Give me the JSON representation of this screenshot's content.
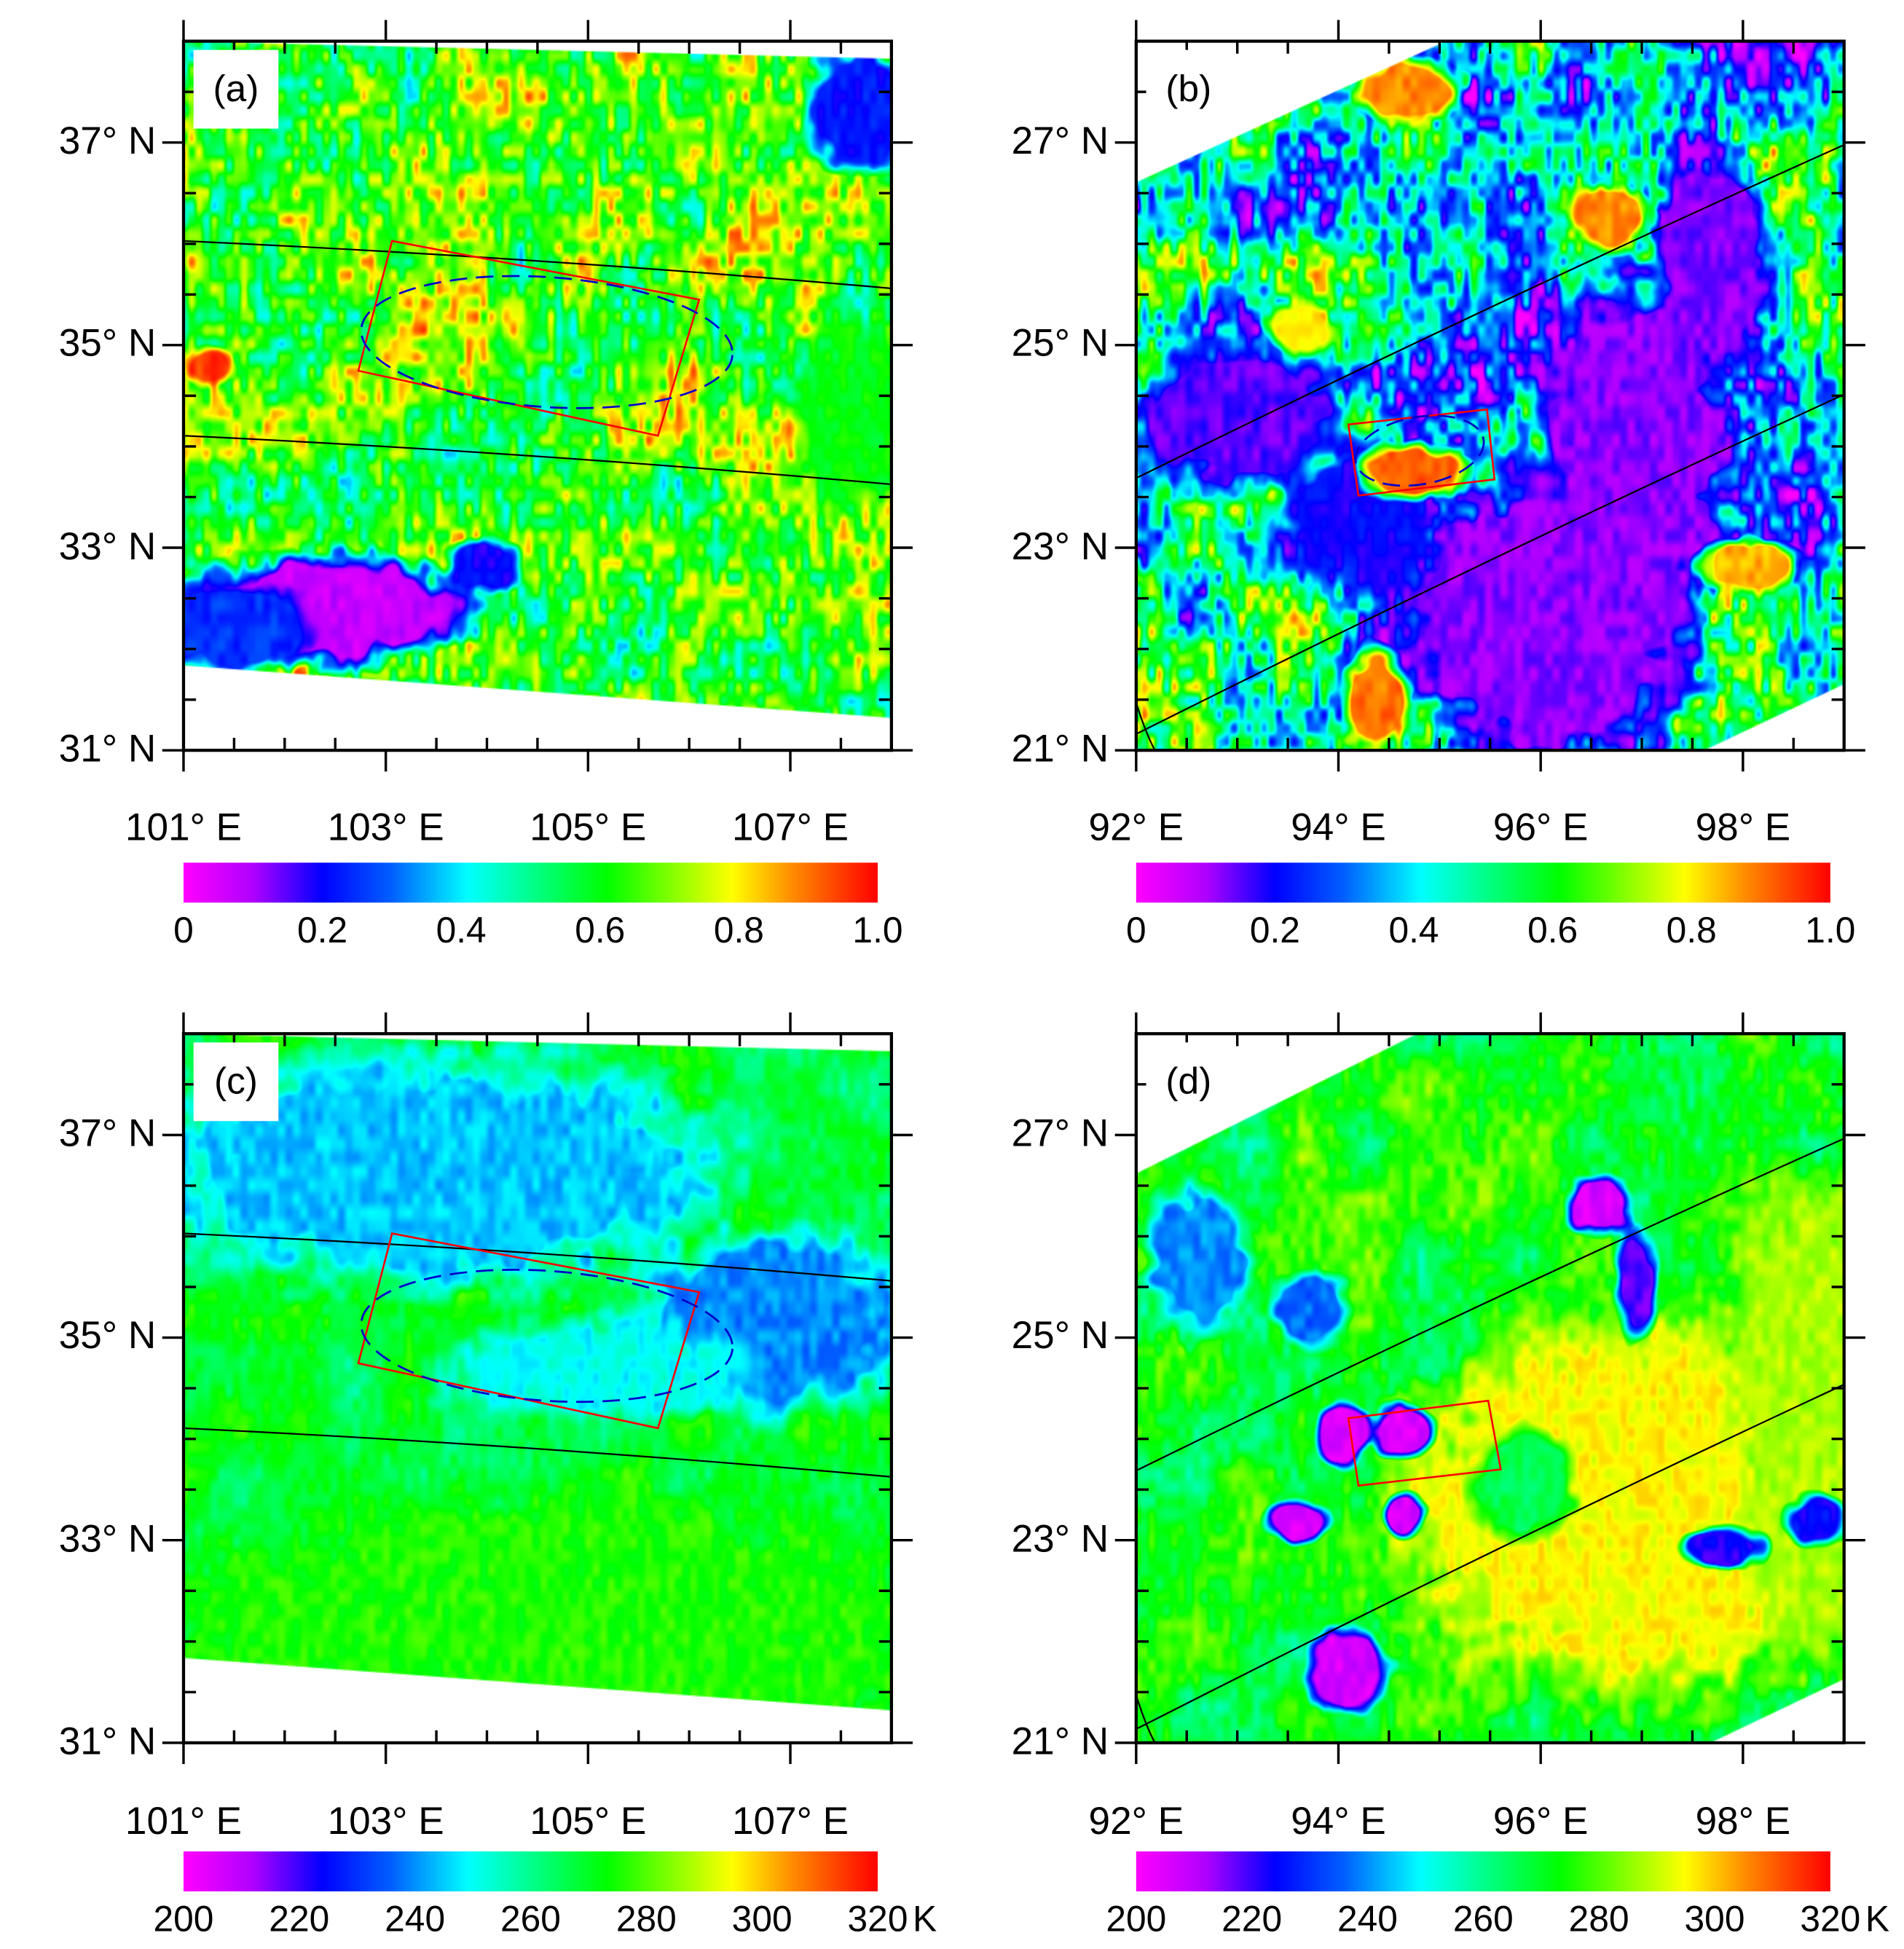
{
  "figure": {
    "panels": [
      {
        "id": "a",
        "label": "(a)",
        "lat_ticks": [
          {
            "value": 37,
            "label": "37° N"
          },
          {
            "value": 35,
            "label": "35° N"
          },
          {
            "value": 33,
            "label": "33° N"
          },
          {
            "value": 31,
            "label": "31° N"
          }
        ],
        "lon_ticks": [
          {
            "value": 101,
            "label": "101° E"
          },
          {
            "value": 103,
            "label": "103° E"
          },
          {
            "value": 105,
            "label": "105° E"
          },
          {
            "value": 107,
            "label": "107° E"
          }
        ],
        "lat_range": [
          31,
          38
        ],
        "lon_range": [
          101,
          108
        ],
        "colorbar": {
          "range": [
            0,
            1.0
          ],
          "ticks": [
            "0",
            "0.2",
            "0.4",
            "0.6",
            "0.8",
            "1.0"
          ],
          "unit": ""
        }
      },
      {
        "id": "b",
        "label": "(b)",
        "lat_ticks": [
          {
            "value": 27,
            "label": "27° N"
          },
          {
            "value": 25,
            "label": "25° N"
          },
          {
            "value": 23,
            "label": "23° N"
          },
          {
            "value": 21,
            "label": "21° N"
          }
        ],
        "lon_ticks": [
          {
            "value": 92,
            "label": "92° E"
          },
          {
            "value": 94,
            "label": "94° E"
          },
          {
            "value": 96,
            "label": "96° E"
          },
          {
            "value": 98,
            "label": "98° E"
          }
        ],
        "lat_range": [
          21,
          28
        ],
        "lon_range": [
          92,
          99
        ],
        "colorbar": {
          "range": [
            0,
            1.0
          ],
          "ticks": [
            "0",
            "0.2",
            "0.4",
            "0.6",
            "0.8",
            "1.0"
          ],
          "unit": ""
        }
      },
      {
        "id": "c",
        "label": "(c)",
        "lat_ticks": [
          {
            "value": 37,
            "label": "37° N"
          },
          {
            "value": 35,
            "label": "35° N"
          },
          {
            "value": 33,
            "label": "33° N"
          },
          {
            "value": 31,
            "label": "31° N"
          }
        ],
        "lon_ticks": [
          {
            "value": 101,
            "label": "101° E"
          },
          {
            "value": 103,
            "label": "103° E"
          },
          {
            "value": 105,
            "label": "105° E"
          },
          {
            "value": 107,
            "label": "107° E"
          }
        ],
        "lat_range": [
          31,
          38
        ],
        "lon_range": [
          101,
          108
        ],
        "colorbar": {
          "range": [
            200,
            320
          ],
          "ticks": [
            "200",
            "220",
            "240",
            "260",
            "280",
            "300",
            "320"
          ],
          "unit": "K"
        }
      },
      {
        "id": "d",
        "label": "(d)",
        "lat_ticks": [
          {
            "value": 27,
            "label": "27° N"
          },
          {
            "value": 25,
            "label": "25° N"
          },
          {
            "value": 23,
            "label": "23° N"
          },
          {
            "value": 21,
            "label": "21° N"
          }
        ],
        "lon_ticks": [
          {
            "value": 92,
            "label": "92° E"
          },
          {
            "value": 94,
            "label": "94° E"
          },
          {
            "value": 96,
            "label": "96° E"
          },
          {
            "value": 98,
            "label": "98° E"
          }
        ],
        "lat_range": [
          21,
          28
        ],
        "lon_range": [
          92,
          99
        ],
        "colorbar": {
          "range": [
            200,
            320
          ],
          "ticks": [
            "200",
            "220",
            "240",
            "260",
            "280",
            "300",
            "320"
          ],
          "unit": "K"
        }
      }
    ]
  },
  "colormap": [
    {
      "pos": 0.0,
      "color": "#ff00ff"
    },
    {
      "pos": 0.1,
      "color": "#b000ff"
    },
    {
      "pos": 0.2,
      "color": "#0000ff"
    },
    {
      "pos": 0.3,
      "color": "#0060ff"
    },
    {
      "pos": 0.41,
      "color": "#00ffff"
    },
    {
      "pos": 0.61,
      "color": "#00ff00"
    },
    {
      "pos": 0.79,
      "color": "#ffff00"
    },
    {
      "pos": 0.88,
      "color": "#ff8800"
    },
    {
      "pos": 1.0,
      "color": "#ff0000"
    }
  ],
  "overlay_colors": {
    "track_lines": "#000000",
    "box": "#ff0000",
    "ellipse": "#0000cc"
  }
}
